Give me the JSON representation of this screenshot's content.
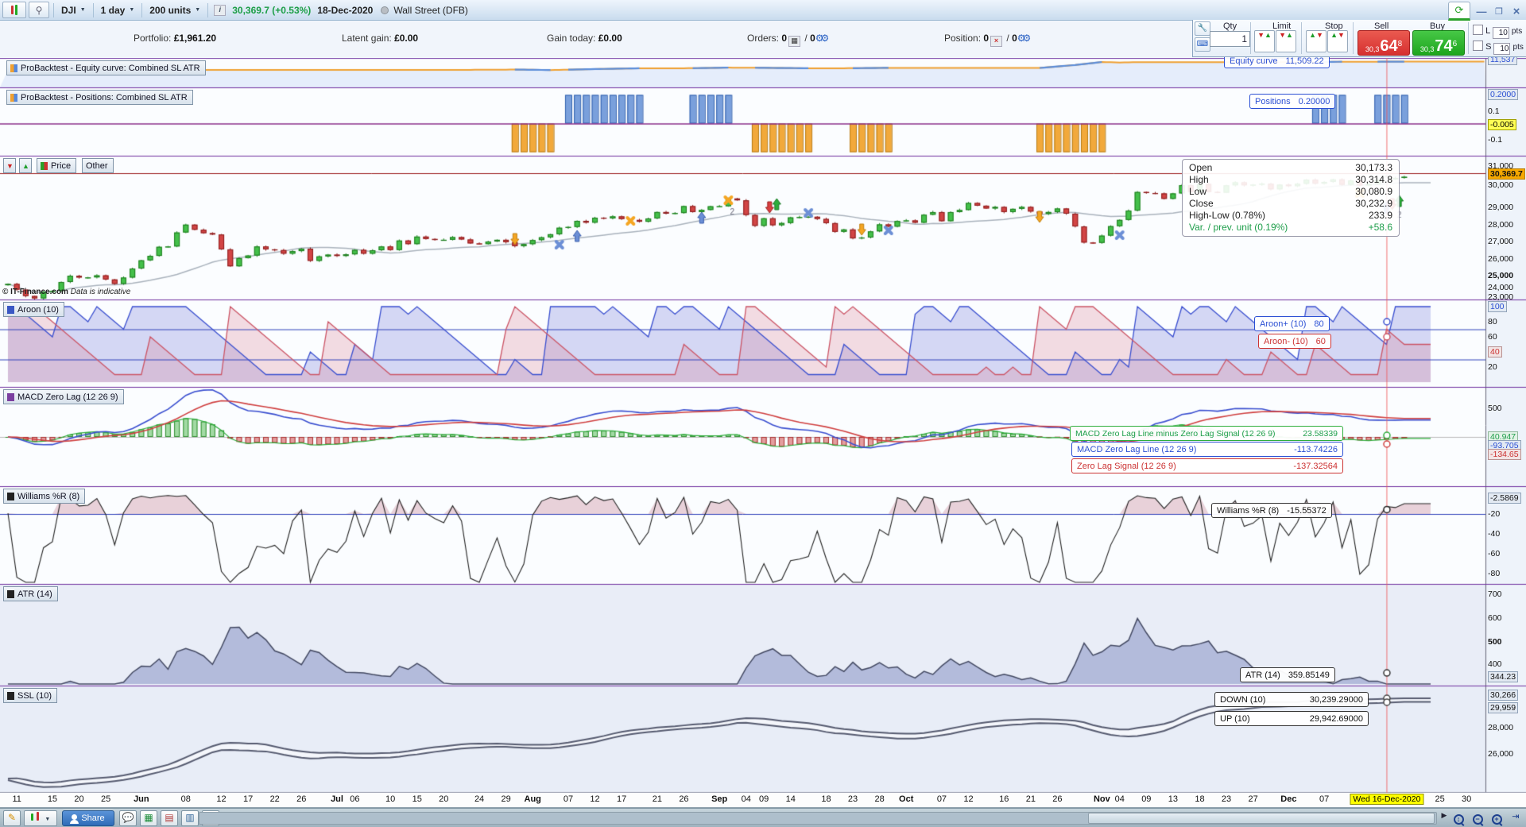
{
  "toolbar": {
    "instrument": "DJI",
    "timeframe": "1 day",
    "units": "200 units",
    "price": "30,369.7 (+0.53%)",
    "date": "18-Dec-2020",
    "market": "Wall Street (DFB)"
  },
  "account": {
    "portfolio_label": "Portfolio:",
    "portfolio_value": "£1,961.20",
    "latent_label": "Latent gain:",
    "latent_value": "£0.00",
    "gain_label": "Gain today:",
    "gain_value": "£0.00",
    "orders_label": "Orders:",
    "orders_value": "0",
    "orders_value2": "0",
    "position_label": "Position:",
    "position_value": "0",
    "position_value2": "0",
    "slash": "/"
  },
  "trade": {
    "qty_label": "Qty",
    "qty_value": "1",
    "limit_label": "Limit",
    "stop_label": "Stop",
    "sell_label": "Sell",
    "buy_label": "Buy",
    "sell_pre": "30,3",
    "sell_big": "64",
    "sell_sup": "8",
    "buy_pre": "30,3",
    "buy_big": "74",
    "buy_sup": "6",
    "l_label": "L",
    "s_label": "S",
    "l_value": "10",
    "s_value": "10",
    "pts_label": "pts",
    "pts_label2": "pts"
  },
  "panels": {
    "eq": {
      "title": "ProBacktest - Equity curve: Combined SL ATR",
      "tip_label": "Equity curve",
      "tip_value": "11,509.22"
    },
    "pos": {
      "title": "ProBacktest - Positions: Combined SL ATR",
      "tip_label": "Positions",
      "tip_value": "0.20000"
    },
    "price": {
      "tab1": "Price",
      "tab2": "Other",
      "copyright": "© IT-Finance.com",
      "indicative": "Data is indicative",
      "tip": {
        "open_l": "Open",
        "open_v": "30,173.3",
        "high_l": "High",
        "high_v": "30,314.8",
        "low_l": "Low",
        "low_v": "30,080.9",
        "close_l": "Close",
        "close_v": "30,232.9",
        "hl_l": "High-Low (0.78%)",
        "hl_v": "233.9",
        "var_l": "Var. / prev. unit (0.19%)",
        "var_v": "+58.6"
      }
    },
    "aroon": {
      "title": "Aroon (10)",
      "plus_label": "Aroon+ (10)",
      "plus_value": "80",
      "minus_label": "Aroon- (10)",
      "minus_value": "60"
    },
    "macd": {
      "title": "MACD Zero Lag (12 26 9)",
      "diff_label": "MACD Zero Lag Line minus Zero Lag Signal (12 26 9)",
      "diff_value": "23.58339",
      "line_label": "MACD Zero Lag Line (12 26 9)",
      "line_value": "-113.74226",
      "sig_label": "Zero Lag Signal (12 26 9)",
      "sig_value": "-137.32564"
    },
    "wil": {
      "title": "Williams %R (8)",
      "tip_label": "Williams %R (8)",
      "tip_value": "-15.55372"
    },
    "atr": {
      "title": "ATR (14)",
      "tip_label": "ATR (14)",
      "tip_value": "359.85149"
    },
    "ssl": {
      "title": "SSL (10)",
      "down_label": "DOWN (10)",
      "down_value": "30,239.29000",
      "up_label": "UP (10)",
      "up_value": "29,942.69000"
    }
  },
  "bottom": {
    "share_label": "Share",
    "cursor_date": "Wed 16-Dec-2020"
  },
  "chart_data": {
    "type": "candlestick+indicators",
    "title": "DJI 1 day — ProBacktest equity/positions, Aroon(10), MACD Zero Lag(12 26 9), Williams %R(8), ATR(14), SSL(10)",
    "closes": [
      24100,
      23760,
      23390,
      23250,
      23630,
      23690,
      24210,
      24580,
      24470,
      24480,
      24600,
      24360,
      24100,
      24470,
      25000,
      25480,
      25740,
      26270,
      26290,
      27110,
      27570,
      27270,
      27070,
      26990,
      26120,
      25130,
      25610,
      25760,
      26290,
      26120,
      26080,
      25870,
      26020,
      26160,
      25450,
      25710,
      25813,
      25735,
      25830,
      26090,
      25870,
      26070,
      26290,
      26085,
      26640,
      26430,
      26870,
      26730,
      26670,
      26680,
      26840,
      26700,
      26470,
      26430,
      26580,
      26680,
      26540,
      26313,
      26428,
      26664,
      26828,
      27007,
      27387,
      27433,
      27791,
      27686,
      27977,
      27931,
      28054,
      27896,
      27845,
      27739,
      27930,
      28308,
      28210,
      28249,
      28654,
      28308,
      28430,
      28645,
      28646,
      29100,
      28993,
      28133,
      27500,
      27940,
      27535,
      27665,
      27993,
      28015,
      28032,
      27902,
      27657,
      27148,
      27288,
      26763,
      26815,
      27174,
      27584,
      27452,
      27782,
      27817,
      27683,
      28149,
      28304,
      27773,
      28304,
      28426,
      28838,
      28679,
      28514,
      28606,
      28309,
      28494,
      28607,
      28336,
      28195,
      28309,
      28514,
      28210,
      27463,
      26520,
      26502,
      26925,
      27480,
      27847,
      28390,
      29480,
      29420,
      29398,
      29080,
      29398,
      29880,
      29484,
      29951,
      29483,
      29438,
      29872,
      30046,
      29872,
      29910,
      29964,
      29638,
      29910,
      29824,
      29962,
      30200,
      29970,
      30069,
      30218,
      29902,
      30155,
      29862,
      29950,
      30173,
      30233,
      30303,
      30370
    ],
    "cursor_idx": 155,
    "equity_points": [
      [
        0,
        10000
      ],
      [
        50,
        10000
      ],
      [
        57,
        10060
      ],
      [
        61,
        9980
      ],
      [
        66,
        10150
      ],
      [
        71,
        10300
      ],
      [
        77,
        10310
      ],
      [
        81,
        10420
      ],
      [
        84,
        10400
      ],
      [
        90,
        10300
      ],
      [
        95,
        10310
      ],
      [
        99,
        10380
      ],
      [
        116,
        10360
      ],
      [
        120,
        10900
      ],
      [
        123,
        11450
      ],
      [
        125,
        11350
      ],
      [
        127,
        11430
      ],
      [
        147,
        11430
      ],
      [
        150,
        11500
      ],
      [
        155,
        11509
      ],
      [
        166,
        11537
      ]
    ],
    "equity_blue_segments": [
      [
        57,
        61
      ],
      [
        63,
        71
      ],
      [
        77,
        81
      ],
      [
        84,
        90
      ],
      [
        95,
        99
      ],
      [
        116,
        123
      ],
      [
        147,
        150
      ],
      [
        154,
        157
      ]
    ],
    "position_groups": {
      "long": [
        [
          63,
          71
        ],
        [
          77,
          81
        ],
        [
          147,
          150
        ],
        [
          154,
          157
        ]
      ],
      "short": [
        [
          57,
          61
        ],
        [
          84,
          90
        ],
        [
          95,
          99
        ],
        [
          116,
          123
        ]
      ]
    },
    "position_values": {
      "long": 0.2,
      "short": -0.2
    },
    "markers": [
      [
        57,
        300,
        "dn",
        "o",
        ""
      ],
      [
        62,
        308,
        "x",
        "b",
        ""
      ],
      [
        64,
        298,
        "up",
        "b",
        ""
      ],
      [
        70,
        278,
        "x",
        "o",
        ""
      ],
      [
        78,
        275,
        "up",
        "b",
        ""
      ],
      [
        81,
        252,
        "x",
        "o",
        "2"
      ],
      [
        86,
        260,
        "pair",
        "",
        ""
      ],
      [
        90,
        268,
        "x",
        "b",
        ""
      ],
      [
        96,
        288,
        "dn",
        "o",
        ""
      ],
      [
        99,
        290,
        "x",
        "b",
        ""
      ],
      [
        116,
        272,
        "dn",
        "o",
        ""
      ],
      [
        125,
        296,
        "x",
        "b",
        ""
      ],
      [
        152,
        243,
        "x",
        "o",
        ""
      ],
      [
        155,
        262,
        "up",
        "b",
        ""
      ],
      [
        156,
        256,
        "pair",
        "",
        "2"
      ]
    ],
    "scale": [
      [
        "11,537",
        75,
        "bb"
      ],
      [
        "0.2000",
        119,
        "bb"
      ],
      [
        "0.1",
        140,
        ""
      ],
      [
        "-0.005",
        157,
        "yb"
      ],
      [
        "-0.1",
        176,
        ""
      ],
      [
        "31,000",
        209,
        ""
      ],
      [
        "30,369.7",
        219,
        "ob"
      ],
      [
        "30,000",
        233,
        ""
      ],
      [
        "29,000",
        261,
        ""
      ],
      [
        "28,000",
        283,
        ""
      ],
      [
        "27,000",
        304,
        ""
      ],
      [
        "26,000",
        326,
        ""
      ],
      [
        "25,000",
        347,
        "b"
      ],
      [
        "24,000",
        362,
        ""
      ],
      [
        "23,000",
        374,
        ""
      ],
      [
        "100",
        386,
        "bb"
      ],
      [
        "80",
        405,
        ""
      ],
      [
        "60",
        424,
        ""
      ],
      [
        "40",
        443,
        "rb"
      ],
      [
        "20",
        462,
        ""
      ],
      [
        "500",
        514,
        ""
      ],
      [
        "40.947",
        550,
        "gb"
      ],
      [
        "-93.705",
        561,
        "bb"
      ],
      [
        "-134.65",
        572,
        "rb"
      ],
      [
        "-2.5869",
        627,
        "bx"
      ],
      [
        "-20",
        647,
        ""
      ],
      [
        "-40",
        672,
        ""
      ],
      [
        "-60",
        697,
        ""
      ],
      [
        "-80",
        722,
        ""
      ],
      [
        "700",
        748,
        ""
      ],
      [
        "600",
        778,
        ""
      ],
      [
        "500",
        808,
        "b"
      ],
      [
        "400",
        836,
        ""
      ],
      [
        "344.23",
        852,
        "bx"
      ],
      [
        "30,266",
        875,
        "bx"
      ],
      [
        "29,959",
        891,
        "bx"
      ],
      [
        "28,000",
        916,
        ""
      ],
      [
        "26,000",
        949,
        ""
      ]
    ],
    "axis_labels": [
      [
        "11",
        1,
        0
      ],
      [
        "15",
        5,
        0
      ],
      [
        "20",
        8,
        0
      ],
      [
        "25",
        11,
        0
      ],
      [
        "Jun",
        15,
        1
      ],
      [
        "08",
        20,
        0
      ],
      [
        "12",
        24,
        0
      ],
      [
        "17",
        27,
        0
      ],
      [
        "22",
        30,
        0
      ],
      [
        "26",
        33,
        0
      ],
      [
        "Jul",
        37,
        1
      ],
      [
        "06",
        39,
        0
      ],
      [
        "10",
        43,
        0
      ],
      [
        "15",
        46,
        0
      ],
      [
        "20",
        49,
        0
      ],
      [
        "24",
        53,
        0
      ],
      [
        "29",
        56,
        0
      ],
      [
        "Aug",
        59,
        1
      ],
      [
        "07",
        63,
        0
      ],
      [
        "12",
        66,
        0
      ],
      [
        "17",
        69,
        0
      ],
      [
        "21",
        73,
        0
      ],
      [
        "26",
        76,
        0
      ],
      [
        "Sep",
        80,
        1
      ],
      [
        "04",
        83,
        0
      ],
      [
        "09",
        85,
        0
      ],
      [
        "14",
        88,
        0
      ],
      [
        "18",
        92,
        0
      ],
      [
        "23",
        95,
        0
      ],
      [
        "28",
        98,
        0
      ],
      [
        "Oct",
        101,
        1
      ],
      [
        "07",
        105,
        0
      ],
      [
        "12",
        108,
        0
      ],
      [
        "16",
        112,
        0
      ],
      [
        "21",
        115,
        0
      ],
      [
        "26",
        118,
        0
      ],
      [
        "Nov",
        123,
        1
      ],
      [
        "04",
        125,
        0
      ],
      [
        "09",
        128,
        0
      ],
      [
        "13",
        131,
        0
      ],
      [
        "18",
        134,
        0
      ],
      [
        "23",
        137,
        0
      ],
      [
        "27",
        140,
        0
      ],
      [
        "Dec",
        144,
        1
      ],
      [
        "07",
        148,
        0
      ],
      [
        "25",
        161,
        0
      ],
      [
        "30",
        164,
        0
      ]
    ]
  }
}
